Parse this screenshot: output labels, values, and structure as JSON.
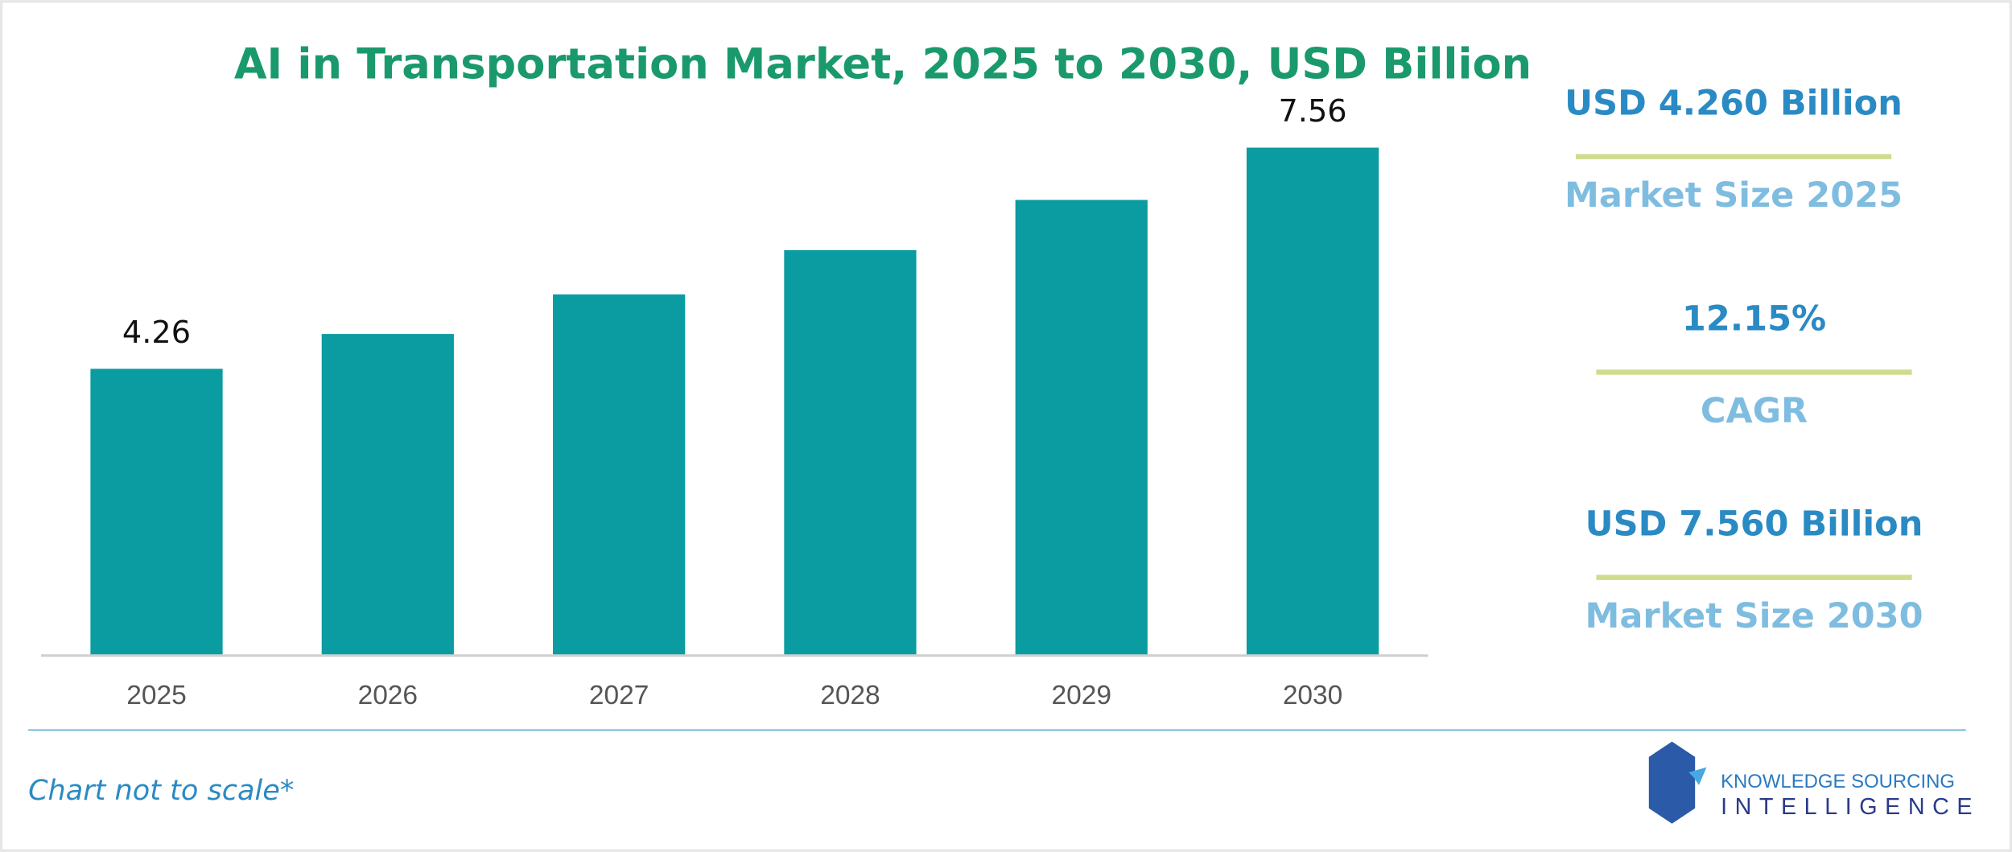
{
  "chart_data": {
    "type": "bar",
    "title": "AI in Transportation Market, 2025 to 2030, USD Billion",
    "categories": [
      "2025",
      "2026",
      "2027",
      "2028",
      "2029",
      "2030"
    ],
    "values": [
      4.26,
      4.78,
      5.37,
      6.03,
      6.78,
      7.56
    ],
    "value_labels": [
      "4.26",
      null,
      null,
      null,
      null,
      "7.56"
    ],
    "color": "#0a9ca0"
  },
  "highlights": [
    {
      "value": "USD 4.260 Billion",
      "label": "Market Size 2025"
    },
    {
      "value": "12.15%",
      "label": "CAGR"
    },
    {
      "value": "USD 7.560 Billion",
      "label": "Market Size 2030"
    }
  ],
  "footer": {
    "note": "Chart not to scale*",
    "logo_top": "KNOWLEDGE SOURCING",
    "logo_bottom": "INTELLIGENCE"
  }
}
